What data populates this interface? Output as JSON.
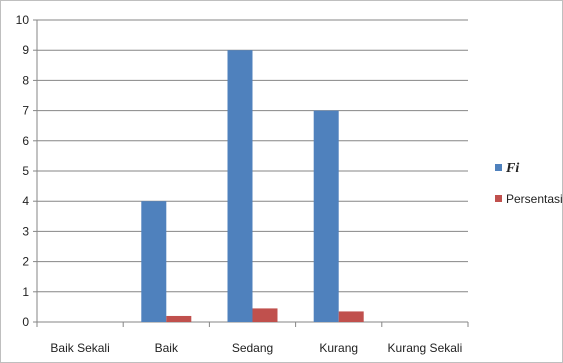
{
  "chart_data": {
    "type": "bar",
    "categories": [
      "Baik Sekali",
      "Baik",
      "Sedang",
      "Kurang",
      "Kurang Sekali"
    ],
    "series": [
      {
        "name": "Fi",
        "color": "#4f81bd",
        "values": [
          0,
          4,
          9,
          7,
          0
        ]
      },
      {
        "name": "Persentasi",
        "color": "#c0504d",
        "values": [
          0,
          0.2,
          0.45,
          0.35,
          0
        ]
      }
    ],
    "ylim": [
      0,
      10
    ],
    "yticks": [
      0,
      1,
      2,
      3,
      4,
      5,
      6,
      7,
      8,
      9,
      10
    ],
    "grid": true,
    "legend": "right"
  }
}
